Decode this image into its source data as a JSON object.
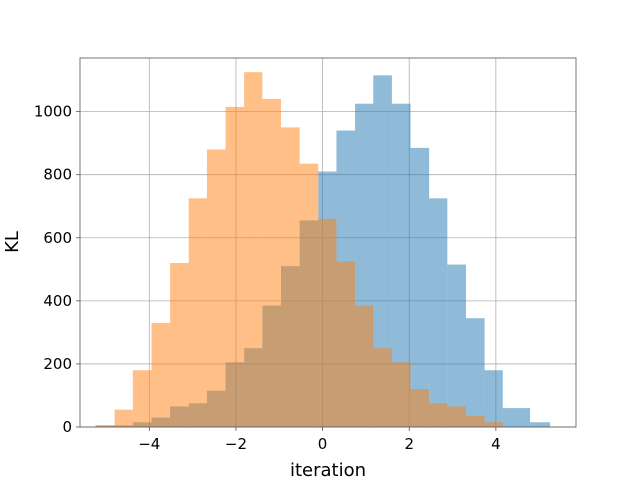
{
  "chart_data": {
    "type": "bar",
    "subtype": "overlapping histogram",
    "xlabel": "iteration",
    "ylabel": "KL",
    "xlim": [
      -5.6,
      5.85
    ],
    "ylim": [
      0,
      1170
    ],
    "xticks": [
      -4,
      -2,
      0,
      2,
      4
    ],
    "xtick_labels": [
      "−4",
      "−2",
      "0",
      "2",
      "4"
    ],
    "yticks": [
      0,
      200,
      400,
      600,
      800,
      1000
    ],
    "ytick_labels": [
      "0",
      "200",
      "400",
      "600",
      "800",
      "1000"
    ],
    "grid": true,
    "legend": "none",
    "series": [
      {
        "color": "#1f77b4",
        "opacity": 0.5,
        "bin_edges": [
          -5.24,
          -4.8,
          -4.38,
          -3.95,
          -3.52,
          -3.09,
          -2.67,
          -2.24,
          -1.81,
          -1.39,
          -0.96,
          -0.53,
          -0.1,
          0.32,
          0.75,
          1.17,
          1.6,
          2.03,
          2.46,
          2.88,
          3.31,
          3.74,
          4.16,
          4.59,
          4.79,
          5.25
        ],
        "values": [
          5,
          5,
          15,
          30,
          65,
          75,
          115,
          205,
          250,
          385,
          510,
          655,
          810,
          940,
          1025,
          1115,
          1025,
          885,
          725,
          515,
          345,
          180,
          60,
          60,
          15
        ]
      },
      {
        "color": "#ff7f0e",
        "opacity": 0.5,
        "bin_edges": [
          -5.24,
          -4.8,
          -4.38,
          -3.95,
          -3.52,
          -3.09,
          -2.67,
          -2.24,
          -1.81,
          -1.39,
          -0.96,
          -0.53,
          -0.1,
          0.32,
          0.75,
          1.17,
          1.6,
          2.03,
          2.46,
          2.88,
          3.31,
          3.74,
          4.16
        ],
        "values": [
          5,
          55,
          180,
          330,
          520,
          725,
          880,
          1015,
          1125,
          1040,
          950,
          835,
          660,
          525,
          385,
          250,
          205,
          120,
          75,
          65,
          35,
          15
        ]
      }
    ]
  }
}
